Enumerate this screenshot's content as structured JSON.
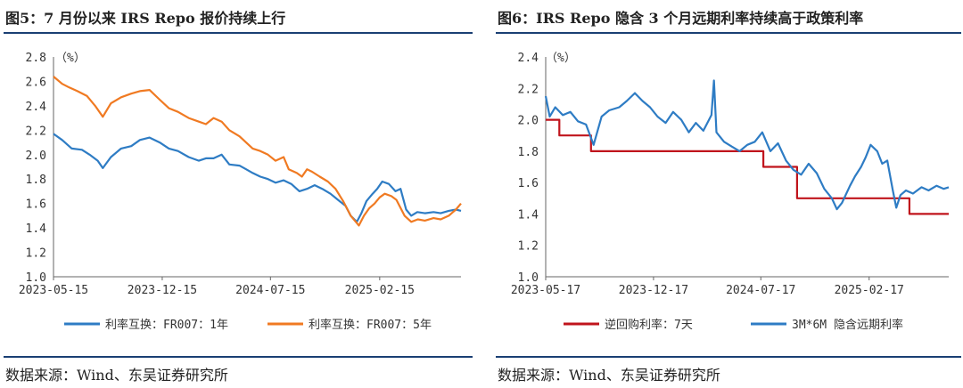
{
  "colors": {
    "blue": "#2e7cc4",
    "orange": "#f07a22",
    "red": "#c0141c",
    "rule": "#1a3f73",
    "axis": "#666666"
  },
  "left": {
    "title": "图5：7 月份以来 IRS Repo 报价持续上行",
    "source": "数据来源：Wind、东吴证券研究所",
    "chart_data": {
      "type": "line",
      "unit_label": "（%）",
      "ylim": [
        1.0,
        2.8
      ],
      "yticks": [
        "2.8",
        "2.6",
        "2.4",
        "2.2",
        "2.0",
        "1.8",
        "1.6",
        "1.4",
        "1.2",
        "1.0"
      ],
      "x_start": "2023-05-15",
      "x_end": "2025-07-25",
      "xticks": [
        "2023-05-15",
        "2023-12-15",
        "2024-07-15",
        "2025-02-15"
      ],
      "series": [
        {
          "name": "利率互换：FR007：1年",
          "color": "#2e7cc4",
          "points": [
            [
              "2023-05-15",
              2.17
            ],
            [
              "2023-06-01",
              2.12
            ],
            [
              "2023-06-20",
              2.05
            ],
            [
              "2023-07-10",
              2.04
            ],
            [
              "2023-07-25",
              2.0
            ],
            [
              "2023-08-10",
              1.95
            ],
            [
              "2023-08-20",
              1.89
            ],
            [
              "2023-09-05",
              1.98
            ],
            [
              "2023-09-25",
              2.05
            ],
            [
              "2023-10-15",
              2.07
            ],
            [
              "2023-11-01",
              2.12
            ],
            [
              "2023-11-20",
              2.14
            ],
            [
              "2023-12-10",
              2.1
            ],
            [
              "2023-12-28",
              2.05
            ],
            [
              "2024-01-15",
              2.03
            ],
            [
              "2024-02-05",
              1.98
            ],
            [
              "2024-02-25",
              1.95
            ],
            [
              "2024-03-10",
              1.97
            ],
            [
              "2024-03-25",
              1.97
            ],
            [
              "2024-04-10",
              2.0
            ],
            [
              "2024-04-25",
              1.92
            ],
            [
              "2024-05-15",
              1.91
            ],
            [
              "2024-05-28",
              1.88
            ],
            [
              "2024-06-10",
              1.85
            ],
            [
              "2024-06-25",
              1.82
            ],
            [
              "2024-07-10",
              1.8
            ],
            [
              "2024-07-25",
              1.77
            ],
            [
              "2024-08-10",
              1.79
            ],
            [
              "2024-08-25",
              1.76
            ],
            [
              "2024-09-10",
              1.7
            ],
            [
              "2024-09-25",
              1.72
            ],
            [
              "2024-10-10",
              1.75
            ],
            [
              "2024-10-25",
              1.72
            ],
            [
              "2024-11-10",
              1.68
            ],
            [
              "2024-11-25",
              1.63
            ],
            [
              "2024-12-10",
              1.58
            ],
            [
              "2024-12-20",
              1.5
            ],
            [
              "2025-01-01",
              1.45
            ],
            [
              "2025-01-10",
              1.52
            ],
            [
              "2025-01-20",
              1.62
            ],
            [
              "2025-02-01",
              1.68
            ],
            [
              "2025-02-10",
              1.72
            ],
            [
              "2025-02-20",
              1.78
            ],
            [
              "2025-03-05",
              1.76
            ],
            [
              "2025-03-18",
              1.7
            ],
            [
              "2025-03-28",
              1.72
            ],
            [
              "2025-04-08",
              1.55
            ],
            [
              "2025-04-18",
              1.5
            ],
            [
              "2025-04-30",
              1.53
            ],
            [
              "2025-05-15",
              1.52
            ],
            [
              "2025-06-01",
              1.53
            ],
            [
              "2025-06-15",
              1.52
            ],
            [
              "2025-07-01",
              1.54
            ],
            [
              "2025-07-15",
              1.55
            ],
            [
              "2025-07-25",
              1.54
            ]
          ]
        },
        {
          "name": "利率互换：FR007：5年",
          "color": "#f07a22",
          "points": [
            [
              "2023-05-15",
              2.64
            ],
            [
              "2023-06-01",
              2.58
            ],
            [
              "2023-06-15",
              2.55
            ],
            [
              "2023-07-01",
              2.52
            ],
            [
              "2023-07-20",
              2.48
            ],
            [
              "2023-08-05",
              2.4
            ],
            [
              "2023-08-20",
              2.31
            ],
            [
              "2023-09-05",
              2.42
            ],
            [
              "2023-09-25",
              2.47
            ],
            [
              "2023-10-15",
              2.5
            ],
            [
              "2023-11-01",
              2.52
            ],
            [
              "2023-11-20",
              2.53
            ],
            [
              "2023-12-10",
              2.45
            ],
            [
              "2023-12-28",
              2.38
            ],
            [
              "2024-01-15",
              2.35
            ],
            [
              "2024-02-05",
              2.3
            ],
            [
              "2024-02-25",
              2.27
            ],
            [
              "2024-03-10",
              2.25
            ],
            [
              "2024-03-25",
              2.3
            ],
            [
              "2024-04-10",
              2.27
            ],
            [
              "2024-04-25",
              2.2
            ],
            [
              "2024-05-15",
              2.15
            ],
            [
              "2024-05-28",
              2.1
            ],
            [
              "2024-06-10",
              2.05
            ],
            [
              "2024-06-25",
              2.03
            ],
            [
              "2024-07-10",
              2.0
            ],
            [
              "2024-07-25",
              1.95
            ],
            [
              "2024-08-10",
              1.98
            ],
            [
              "2024-08-20",
              1.88
            ],
            [
              "2024-09-05",
              1.85
            ],
            [
              "2024-09-15",
              1.82
            ],
            [
              "2024-09-25",
              1.88
            ],
            [
              "2024-10-05",
              1.86
            ],
            [
              "2024-10-20",
              1.82
            ],
            [
              "2024-11-05",
              1.78
            ],
            [
              "2024-11-20",
              1.72
            ],
            [
              "2024-12-05",
              1.62
            ],
            [
              "2024-12-20",
              1.5
            ],
            [
              "2025-01-05",
              1.42
            ],
            [
              "2025-01-15",
              1.5
            ],
            [
              "2025-01-25",
              1.56
            ],
            [
              "2025-02-05",
              1.6
            ],
            [
              "2025-02-15",
              1.65
            ],
            [
              "2025-02-25",
              1.68
            ],
            [
              "2025-03-10",
              1.66
            ],
            [
              "2025-03-20",
              1.63
            ],
            [
              "2025-04-05",
              1.5
            ],
            [
              "2025-04-18",
              1.45
            ],
            [
              "2025-05-01",
              1.47
            ],
            [
              "2025-05-15",
              1.46
            ],
            [
              "2025-06-01",
              1.48
            ],
            [
              "2025-06-15",
              1.47
            ],
            [
              "2025-07-01",
              1.5
            ],
            [
              "2025-07-15",
              1.55
            ],
            [
              "2025-07-25",
              1.6
            ]
          ]
        }
      ]
    }
  },
  "right": {
    "title": "图6：IRS Repo 隐含 3 个月远期利率持续高于政策利率",
    "source": "数据来源：Wind、东吴证券研究所",
    "chart_data": {
      "type": "line",
      "unit_label": "（%）",
      "ylim": [
        1.0,
        2.4
      ],
      "yticks": [
        "2.4",
        "2.2",
        "2.0",
        "1.8",
        "1.6",
        "1.4",
        "1.2",
        "1.0"
      ],
      "x_start": "2023-05-17",
      "x_end": "2025-07-25",
      "xticks": [
        "2023-05-17",
        "2023-12-17",
        "2024-07-17",
        "2025-02-17"
      ],
      "series": [
        {
          "name": "逆回购利率：7天",
          "color": "#c0141c",
          "step": true,
          "points": [
            [
              "2023-05-17",
              2.0
            ],
            [
              "2023-06-13",
              1.9
            ],
            [
              "2023-08-15",
              1.8
            ],
            [
              "2024-07-22",
              1.7
            ],
            [
              "2024-09-27",
              1.5
            ],
            [
              "2025-05-08",
              1.4
            ],
            [
              "2025-07-25",
              1.4
            ]
          ]
        },
        {
          "name": "3M*6M 隐含远期利率",
          "color": "#2e7cc4",
          "points": [
            [
              "2023-05-17",
              2.15
            ],
            [
              "2023-05-25",
              2.02
            ],
            [
              "2023-06-05",
              2.08
            ],
            [
              "2023-06-20",
              2.03
            ],
            [
              "2023-07-05",
              2.05
            ],
            [
              "2023-07-20",
              1.99
            ],
            [
              "2023-08-05",
              1.97
            ],
            [
              "2023-08-20",
              1.84
            ],
            [
              "2023-09-05",
              2.02
            ],
            [
              "2023-09-20",
              2.06
            ],
            [
              "2023-10-10",
              2.08
            ],
            [
              "2023-10-25",
              2.12
            ],
            [
              "2023-11-10",
              2.17
            ],
            [
              "2023-11-25",
              2.12
            ],
            [
              "2023-12-10",
              2.08
            ],
            [
              "2023-12-25",
              2.02
            ],
            [
              "2024-01-10",
              1.98
            ],
            [
              "2024-01-25",
              2.05
            ],
            [
              "2024-02-10",
              2.0
            ],
            [
              "2024-02-25",
              1.92
            ],
            [
              "2024-03-10",
              1.98
            ],
            [
              "2024-03-25",
              1.93
            ],
            [
              "2024-04-10",
              2.03
            ],
            [
              "2024-04-15",
              2.25
            ],
            [
              "2024-04-20",
              1.92
            ],
            [
              "2024-05-05",
              1.86
            ],
            [
              "2024-05-20",
              1.83
            ],
            [
              "2024-06-05",
              1.8
            ],
            [
              "2024-06-20",
              1.84
            ],
            [
              "2024-07-05",
              1.86
            ],
            [
              "2024-07-20",
              1.92
            ],
            [
              "2024-08-05",
              1.8
            ],
            [
              "2024-08-20",
              1.85
            ],
            [
              "2024-09-05",
              1.74
            ],
            [
              "2024-09-20",
              1.68
            ],
            [
              "2024-10-05",
              1.65
            ],
            [
              "2024-10-20",
              1.72
            ],
            [
              "2024-11-05",
              1.66
            ],
            [
              "2024-11-20",
              1.56
            ],
            [
              "2024-12-05",
              1.5
            ],
            [
              "2024-12-15",
              1.43
            ],
            [
              "2024-12-25",
              1.47
            ],
            [
              "2025-01-10",
              1.58
            ],
            [
              "2025-01-20",
              1.64
            ],
            [
              "2025-02-01",
              1.7
            ],
            [
              "2025-02-10",
              1.76
            ],
            [
              "2025-02-20",
              1.84
            ],
            [
              "2025-03-05",
              1.8
            ],
            [
              "2025-03-15",
              1.72
            ],
            [
              "2025-03-25",
              1.74
            ],
            [
              "2025-04-05",
              1.55
            ],
            [
              "2025-04-12",
              1.44
            ],
            [
              "2025-04-20",
              1.52
            ],
            [
              "2025-05-01",
              1.55
            ],
            [
              "2025-05-15",
              1.53
            ],
            [
              "2025-06-01",
              1.57
            ],
            [
              "2025-06-15",
              1.55
            ],
            [
              "2025-07-01",
              1.58
            ],
            [
              "2025-07-15",
              1.56
            ],
            [
              "2025-07-25",
              1.57
            ]
          ]
        }
      ]
    }
  }
}
